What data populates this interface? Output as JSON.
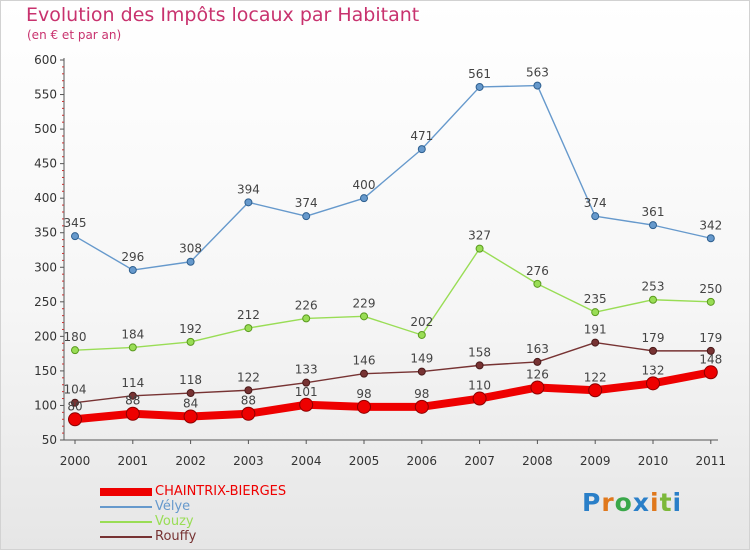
{
  "header": {
    "title": "Evolution des Impôts locaux par Habitant",
    "subtitle": "(en € et par an)"
  },
  "logo": {
    "parts": [
      "P",
      "r",
      "o",
      "x",
      "i",
      "t",
      "i"
    ],
    "colors": [
      "#2a7fc8",
      "#e0781c",
      "#3aa84a",
      "#2a7fc8",
      "#e0781c",
      "#7cb83a",
      "#2a7fc8"
    ]
  },
  "chart_data": {
    "type": "line",
    "x": [
      "2000",
      "2001",
      "2002",
      "2003",
      "2004",
      "2005",
      "2006",
      "2007",
      "2008",
      "2009",
      "2010",
      "2011"
    ],
    "ylim": [
      50,
      600
    ],
    "yticks": [
      50,
      100,
      150,
      200,
      250,
      300,
      350,
      400,
      450,
      500,
      550,
      600
    ],
    "grid": false,
    "legend_position": "bottom-left",
    "series": [
      {
        "name": "CHAINTRIX-BIERGES",
        "color": "#ee0000",
        "values": [
          80,
          88,
          84,
          88,
          101,
          98,
          98,
          110,
          126,
          122,
          132,
          148
        ]
      },
      {
        "name": "Vélye",
        "color": "#6699cc",
        "values": [
          345,
          296,
          308,
          394,
          374,
          400,
          471,
          561,
          563,
          374,
          361,
          342
        ]
      },
      {
        "name": "Vouzy",
        "color": "#99dd55",
        "values": [
          180,
          184,
          192,
          212,
          226,
          229,
          202,
          327,
          276,
          235,
          253,
          250
        ]
      },
      {
        "name": "Rouffy",
        "color": "#773333",
        "values": [
          104,
          114,
          118,
          122,
          133,
          146,
          149,
          158,
          163,
          191,
          179,
          179
        ]
      }
    ]
  }
}
